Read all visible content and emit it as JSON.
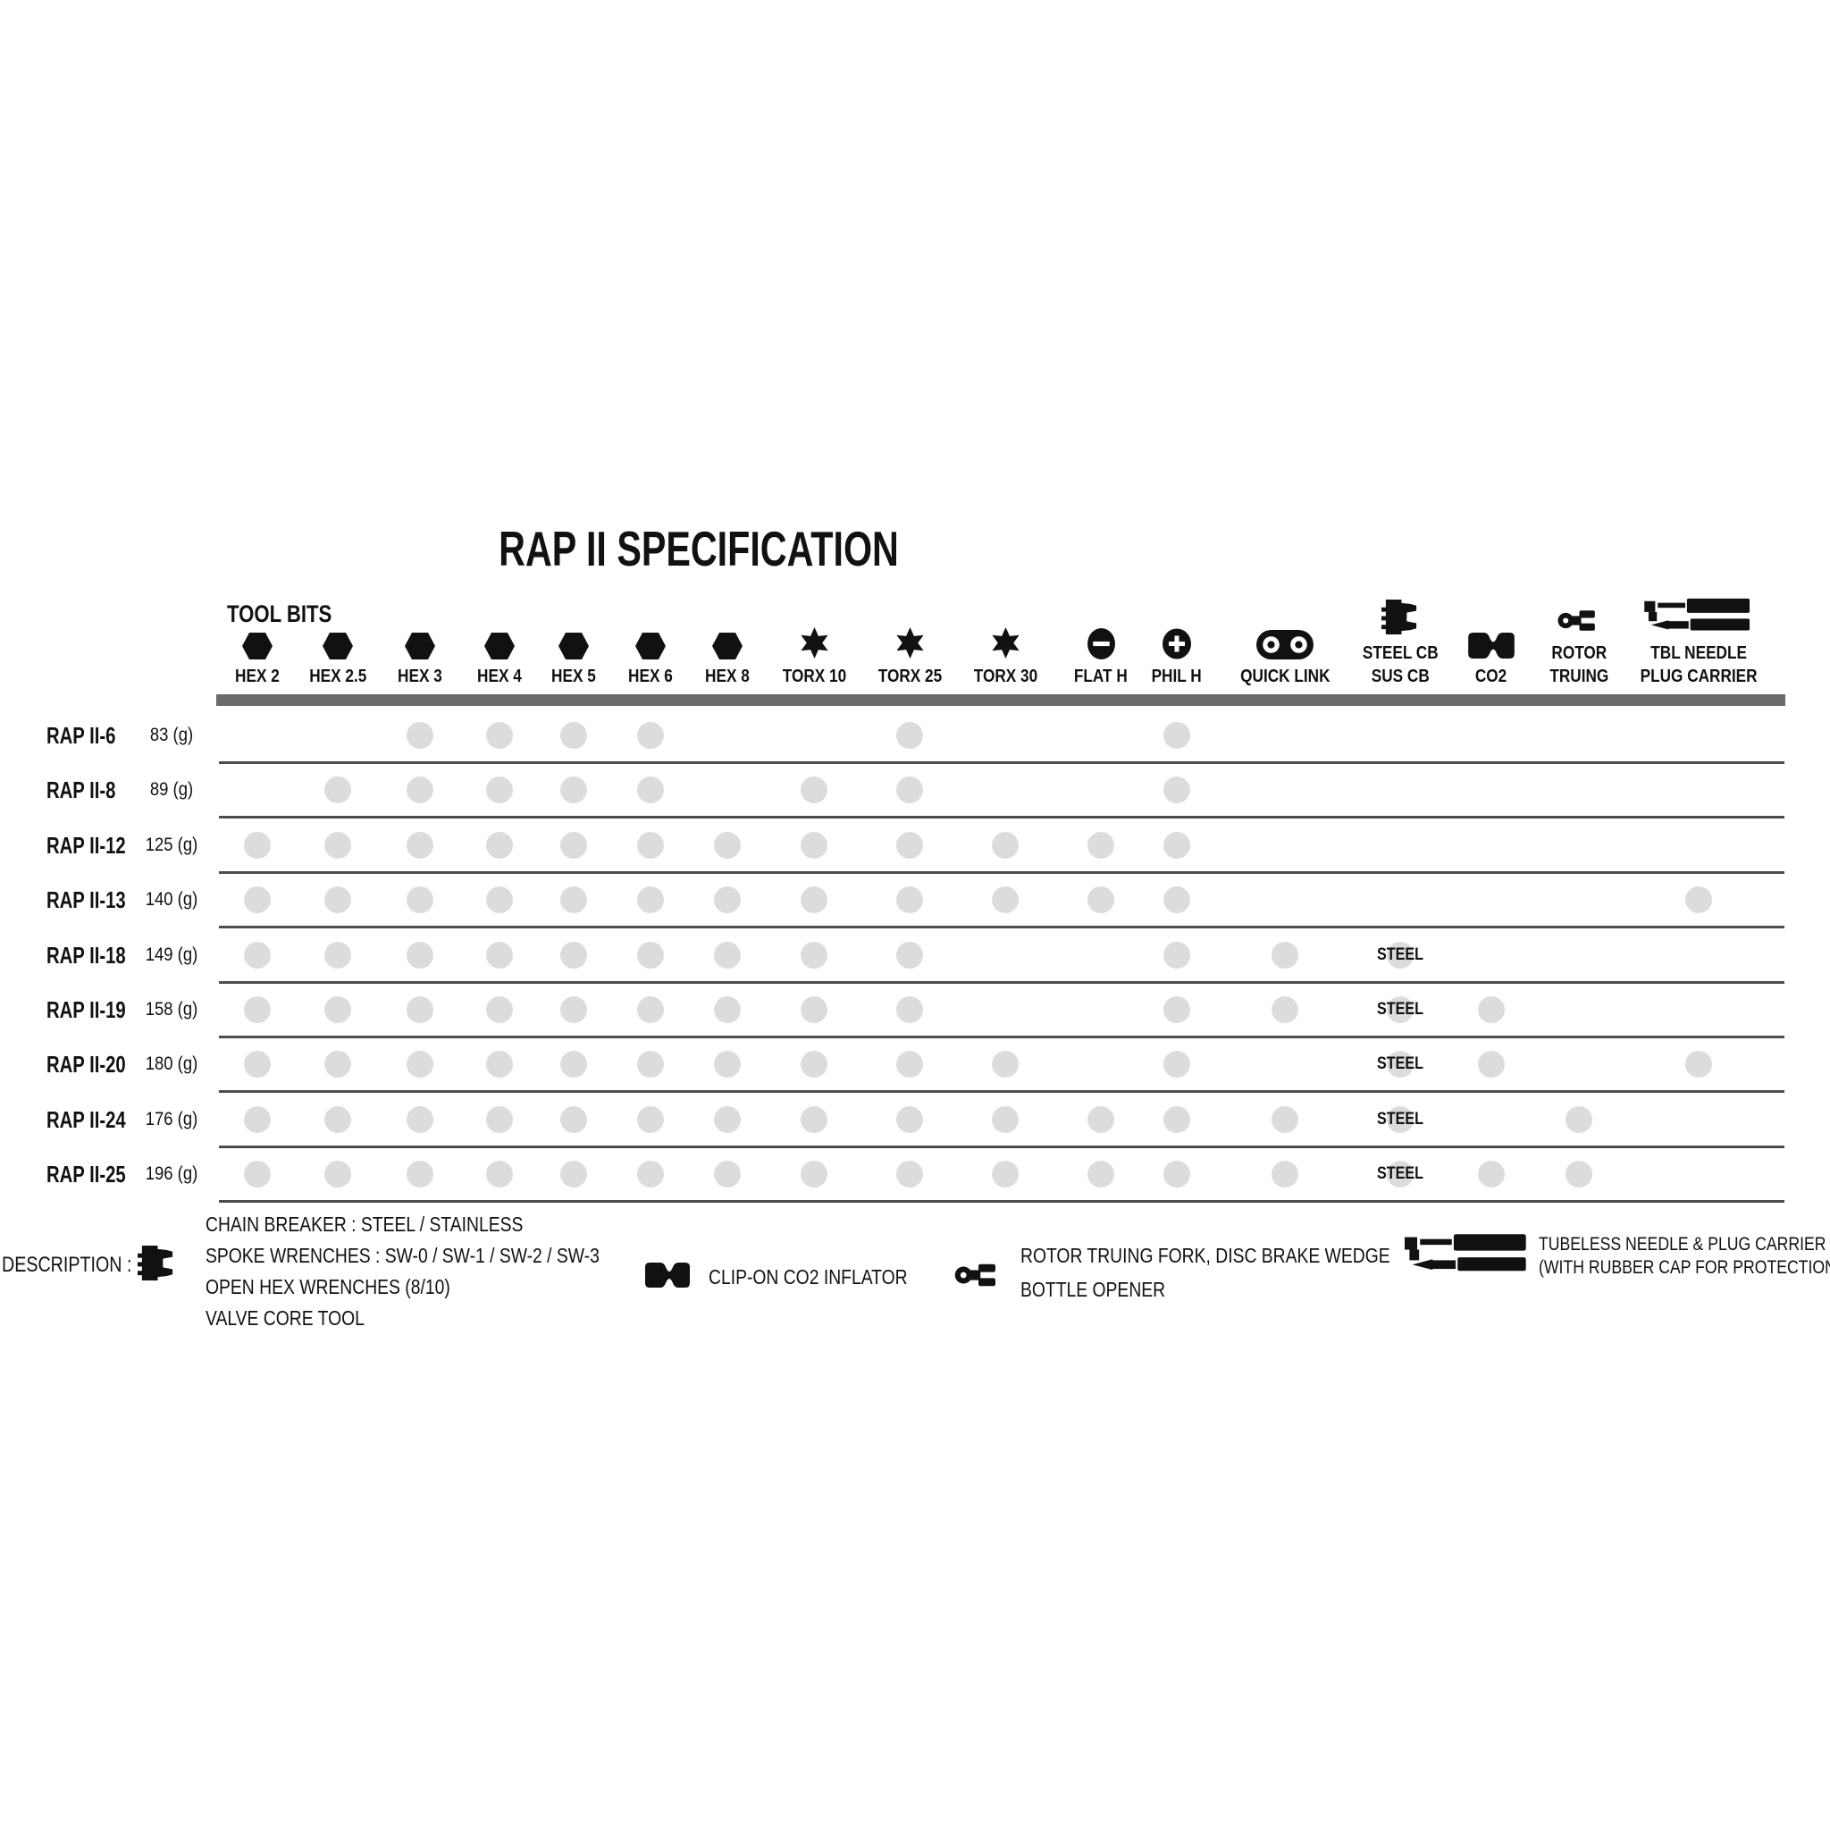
{
  "title": "RAP II SPECIFICATION",
  "tool_bits_label": "TOOL BITS",
  "steel_cell_label": "STEEL",
  "colors": {
    "ink": "#111111",
    "dot_gray": "#dcdcdc",
    "header_bar_gray": "#6a6a6a",
    "divider_gray": "#4c4c4c",
    "background": "#ffffff"
  },
  "columns": [
    {
      "id": "hex2",
      "lines": [
        "HEX 2"
      ],
      "icon": "hex-bit-icon"
    },
    {
      "id": "hex25",
      "lines": [
        "HEX 2.5"
      ],
      "icon": "hex-bit-icon"
    },
    {
      "id": "hex3",
      "lines": [
        "HEX 3"
      ],
      "icon": "hex-bit-icon"
    },
    {
      "id": "hex4",
      "lines": [
        "HEX 4"
      ],
      "icon": "hex-bit-icon"
    },
    {
      "id": "hex5",
      "lines": [
        "HEX 5"
      ],
      "icon": "hex-bit-icon"
    },
    {
      "id": "hex6",
      "lines": [
        "HEX 6"
      ],
      "icon": "hex-bit-icon"
    },
    {
      "id": "hex8",
      "lines": [
        "HEX 8"
      ],
      "icon": "hex-bit-icon"
    },
    {
      "id": "torx10",
      "lines": [
        "TORX 10"
      ],
      "icon": "torx-bit-icon"
    },
    {
      "id": "torx25",
      "lines": [
        "TORX 25"
      ],
      "icon": "torx-bit-icon"
    },
    {
      "id": "torx30",
      "lines": [
        "TORX 30"
      ],
      "icon": "torx-bit-icon"
    },
    {
      "id": "flath",
      "lines": [
        "FLAT H"
      ],
      "icon": "flat-head-icon"
    },
    {
      "id": "philh",
      "lines": [
        "PHIL H"
      ],
      "icon": "phillips-head-icon"
    },
    {
      "id": "quicklink",
      "lines": [
        "QUICK LINK"
      ],
      "icon": "quick-link-icon"
    },
    {
      "id": "cb",
      "lines": [
        "STEEL CB",
        "SUS CB"
      ],
      "icon": "chain-breaker-icon"
    },
    {
      "id": "co2",
      "lines": [
        "CO2"
      ],
      "icon": "co2-cartridge-icon"
    },
    {
      "id": "rotor",
      "lines": [
        "ROTOR",
        "TRUING"
      ],
      "icon": "rotor-truing-icon"
    },
    {
      "id": "tbl",
      "lines": [
        "TBL NEEDLE",
        "PLUG CARRIER"
      ],
      "icon": "tubeless-plug-icon"
    }
  ],
  "rows": [
    {
      "model": "RAP II-6",
      "weight": "83 (g)",
      "chain_breaker": null,
      "tools": [
        "hex3",
        "hex4",
        "hex5",
        "hex6",
        "torx25",
        "philh"
      ]
    },
    {
      "model": "RAP II-8",
      "weight": "89 (g)",
      "chain_breaker": null,
      "tools": [
        "hex25",
        "hex3",
        "hex4",
        "hex5",
        "hex6",
        "torx10",
        "torx25",
        "philh"
      ]
    },
    {
      "model": "RAP II-12",
      "weight": "125 (g)",
      "chain_breaker": null,
      "tools": [
        "hex2",
        "hex25",
        "hex3",
        "hex4",
        "hex5",
        "hex6",
        "hex8",
        "torx10",
        "torx25",
        "torx30",
        "flath",
        "philh"
      ]
    },
    {
      "model": "RAP II-13",
      "weight": "140 (g)",
      "chain_breaker": null,
      "tools": [
        "hex2",
        "hex25",
        "hex3",
        "hex4",
        "hex5",
        "hex6",
        "hex8",
        "torx10",
        "torx25",
        "torx30",
        "flath",
        "philh",
        "tbl"
      ]
    },
    {
      "model": "RAP II-18",
      "weight": "149 (g)",
      "chain_breaker": "STEEL",
      "tools": [
        "hex2",
        "hex25",
        "hex3",
        "hex4",
        "hex5",
        "hex6",
        "hex8",
        "torx10",
        "torx25",
        "philh",
        "quicklink"
      ]
    },
    {
      "model": "RAP II-19",
      "weight": "158 (g)",
      "chain_breaker": "STEEL",
      "tools": [
        "hex2",
        "hex25",
        "hex3",
        "hex4",
        "hex5",
        "hex6",
        "hex8",
        "torx10",
        "torx25",
        "philh",
        "quicklink",
        "co2"
      ]
    },
    {
      "model": "RAP II-20",
      "weight": "180 (g)",
      "chain_breaker": "STEEL",
      "tools": [
        "hex2",
        "hex25",
        "hex3",
        "hex4",
        "hex5",
        "hex6",
        "hex8",
        "torx10",
        "torx25",
        "torx30",
        "philh",
        "co2",
        "tbl"
      ]
    },
    {
      "model": "RAP II-24",
      "weight": "176 (g)",
      "chain_breaker": "STEEL",
      "tools": [
        "hex2",
        "hex25",
        "hex3",
        "hex4",
        "hex5",
        "hex6",
        "hex8",
        "torx10",
        "torx25",
        "torx30",
        "flath",
        "philh",
        "quicklink",
        "rotor"
      ]
    },
    {
      "model": "RAP II-25",
      "weight": "196 (g)",
      "chain_breaker": "STEEL",
      "tools": [
        "hex2",
        "hex25",
        "hex3",
        "hex4",
        "hex5",
        "hex6",
        "hex8",
        "torx10",
        "torx25",
        "torx30",
        "flath",
        "philh",
        "quicklink",
        "co2",
        "rotor"
      ]
    }
  ],
  "description": {
    "label": "DESCRIPTION :",
    "items": [
      {
        "icon": "chain-breaker-icon",
        "lines": [
          "CHAIN BREAKER : STEEL / STAINLESS",
          "SPOKE WRENCHES : SW-0 / SW-1 / SW-2 / SW-3",
          "OPEN HEX WRENCHES (8/10)",
          "VALVE CORE TOOL"
        ]
      },
      {
        "icon": "co2-cartridge-icon",
        "lines": [
          "CLIP-ON CO2 INFLATOR"
        ]
      },
      {
        "icon": "rotor-truing-icon",
        "lines": [
          "ROTOR TRUING FORK, DISC BRAKE WEDGE",
          "BOTTLE OPENER"
        ]
      },
      {
        "icon": "tubeless-plug-icon",
        "lines": [
          "TUBELESS NEEDLE & PLUG CARRIER",
          "(WITH RUBBER CAP FOR PROTECTION)"
        ]
      }
    ]
  }
}
